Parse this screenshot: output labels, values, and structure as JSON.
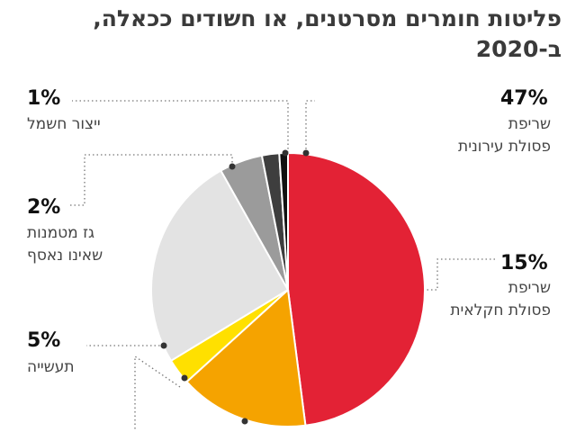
{
  "title": {
    "line1": "פליטות חומרים מסרטנים, או חשודים ככאלה,",
    "line2": "ב-2020"
  },
  "chart_data": {
    "type": "pie",
    "title": "פליטות חומרים מסרטנים, או חשודים ככאלה, ב-2020",
    "slices": [
      {
        "value": 47,
        "pct_label": "47%",
        "desc1": "שריפת",
        "desc2": "פסולת עירונית",
        "color": "#e32235"
      },
      {
        "value": 15,
        "pct_label": "15%",
        "desc1": "שריפת",
        "desc2": "פסולת חקלאית",
        "color": "#f5a300"
      },
      {
        "value": 3,
        "pct_label": "",
        "desc1": "",
        "desc2": "",
        "color": "#ffe000"
      },
      {
        "value": 25,
        "pct_label": "",
        "desc1": "",
        "desc2": "",
        "color": "#e3e3e3"
      },
      {
        "value": 5,
        "pct_label": "5%",
        "desc1": "תעשייה",
        "desc2": "",
        "color": "#9b9b9b"
      },
      {
        "value": 2,
        "pct_label": "2%",
        "desc1": "גז מטמנות",
        "desc2": "שאינו נאסף",
        "color": "#3e3e3e"
      },
      {
        "value": 1,
        "pct_label": "1%",
        "desc1": "ייצור חשמל",
        "desc2": "",
        "color": "#111111"
      }
    ]
  }
}
